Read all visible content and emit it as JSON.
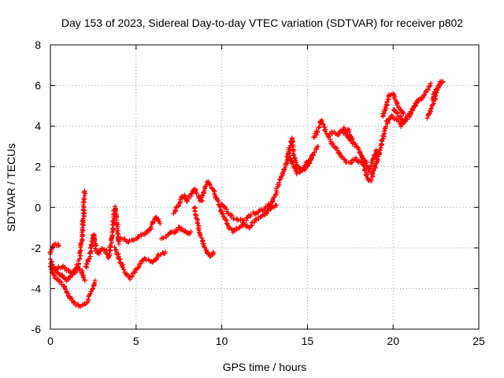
{
  "chart_data": {
    "type": "scatter",
    "title": "Day 153 of 2023, Sidereal Day-to-day VTEC variation (SDTVAR) for receiver p802",
    "xlabel": "GPS time / hours",
    "ylabel": "SDTVAR / TECUs",
    "xlim": [
      0,
      25
    ],
    "ylim": [
      -6,
      8
    ],
    "grid": true,
    "marker": "+",
    "color": "#ff0000",
    "x_ticks": [
      0,
      5,
      10,
      15,
      20,
      25
    ],
    "y_ticks": [
      -6,
      -4,
      -2,
      0,
      2,
      4,
      6,
      8
    ],
    "series": [
      {
        "name": "p802",
        "tracks": [
          {
            "x": [
              0.0,
              0.1,
              0.2,
              0.35,
              0.5
            ],
            "y": [
              -2.3,
              -2.0,
              -1.9,
              -1.8,
              -1.9
            ]
          },
          {
            "x": [
              0.0,
              0.15,
              0.3,
              0.5,
              0.8,
              1.0,
              1.2,
              1.5,
              1.8,
              2.0,
              2.2,
              2.4,
              2.6
            ],
            "y": [
              -2.8,
              -3.2,
              -3.5,
              -3.6,
              -3.9,
              -4.2,
              -4.5,
              -4.8,
              -4.9,
              -4.8,
              -4.6,
              -4.1,
              -3.6
            ]
          },
          {
            "x": [
              0.0,
              0.2,
              0.4,
              0.6,
              0.8,
              1.0,
              1.2,
              1.4,
              1.6,
              1.8,
              2.0
            ],
            "y": [
              -2.6,
              -3.0,
              -3.2,
              -3.3,
              -3.5,
              -3.6,
              -3.4,
              -3.2,
              -3.0,
              -3.1,
              -3.6
            ]
          },
          {
            "x": [
              0.4,
              0.7,
              1.0,
              1.3,
              1.5,
              1.7,
              1.8,
              1.9,
              1.95,
              2.0
            ],
            "y": [
              -3.0,
              -2.9,
              -3.1,
              -3.3,
              -3.0,
              -2.6,
              -2.0,
              -1.0,
              0.0,
              0.8
            ]
          },
          {
            "x": [
              2.1,
              2.3,
              2.4,
              2.5,
              2.6,
              2.7,
              2.8,
              3.0,
              3.2,
              3.4,
              3.6,
              3.7,
              3.75,
              3.8,
              3.9,
              4.0
            ],
            "y": [
              -3.0,
              -2.4,
              -1.8,
              -1.3,
              -1.6,
              -2.2,
              -2.3,
              -2.0,
              -2.1,
              -2.5,
              -1.5,
              -0.5,
              0.0,
              -0.2,
              -1.0,
              -1.8
            ]
          },
          {
            "x": [
              3.8,
              4.0,
              4.3,
              4.6,
              4.9,
              5.2,
              5.5,
              5.8,
              6.1,
              6.4,
              6.7
            ],
            "y": [
              -2.0,
              -2.5,
              -3.1,
              -3.5,
              -3.2,
              -2.8,
              -2.5,
              -2.7,
              -2.6,
              -2.3,
              -2.2
            ]
          },
          {
            "x": [
              4.0,
              4.3,
              4.6,
              4.9,
              5.2,
              5.5,
              5.8,
              6.0,
              6.2,
              6.4
            ],
            "y": [
              -1.5,
              -1.6,
              -1.7,
              -1.6,
              -1.4,
              -1.3,
              -1.1,
              -0.7,
              -0.5,
              -0.8
            ]
          },
          {
            "x": [
              6.5,
              6.8,
              7.0,
              7.2,
              7.5,
              7.7,
              8.0,
              8.2
            ],
            "y": [
              -1.5,
              -1.4,
              -1.2,
              -1.3,
              -1.0,
              -1.1,
              -1.3,
              -1.2
            ]
          },
          {
            "x": [
              7.2,
              7.4,
              7.6,
              7.8,
              8.0,
              8.2,
              8.4,
              8.6,
              8.8,
              9.0,
              9.2,
              9.4,
              9.6
            ],
            "y": [
              -0.3,
              0.0,
              0.4,
              0.6,
              0.3,
              0.6,
              0.9,
              0.6,
              0.3,
              0.9,
              1.3,
              1.0,
              0.6
            ]
          },
          {
            "x": [
              8.4,
              8.6,
              8.8,
              9.0,
              9.2,
              9.4,
              9.5
            ],
            "y": [
              0.0,
              -0.8,
              -1.5,
              -2.0,
              -2.3,
              -2.4,
              -2.2
            ]
          },
          {
            "x": [
              9.6,
              9.8,
              10.0,
              10.2,
              10.4,
              10.7,
              11.0,
              11.3,
              11.6,
              12.0,
              12.4,
              12.8,
              13.2
            ],
            "y": [
              0.5,
              0.3,
              -0.2,
              -0.6,
              -1.0,
              -1.2,
              -1.0,
              -0.8,
              -1.0,
              -0.6,
              -0.4,
              -0.1,
              0.1
            ]
          },
          {
            "x": [
              10.0,
              10.3,
              10.6,
              11.0,
              11.4,
              11.8,
              12.2,
              12.6,
              13.0
            ],
            "y": [
              0.2,
              -0.2,
              -0.5,
              -0.6,
              -0.6,
              -0.3,
              -0.2,
              0.0,
              0.3
            ]
          },
          {
            "x": [
              12.8,
              13.1,
              13.4,
              13.7,
              14.0,
              14.2,
              14.4,
              14.7,
              15.0,
              15.3,
              15.6
            ],
            "y": [
              0.0,
              0.6,
              1.3,
              2.0,
              2.5,
              2.0,
              1.7,
              1.8,
              2.2,
              2.5,
              3.0
            ]
          },
          {
            "x": [
              13.8,
              14.0,
              14.1,
              14.2,
              14.4,
              14.7,
              15.0,
              15.3
            ],
            "y": [
              2.4,
              3.0,
              3.4,
              2.6,
              2.0,
              1.8,
              2.0,
              2.6
            ]
          },
          {
            "x": [
              15.4,
              15.6,
              15.8,
              16.0,
              16.2,
              16.5,
              16.8,
              17.1,
              17.4,
              17.6
            ],
            "y": [
              3.4,
              3.8,
              4.3,
              3.9,
              3.5,
              3.7,
              3.6,
              3.9,
              3.8,
              3.3
            ]
          },
          {
            "x": [
              16.3,
              16.6,
              16.9,
              17.2,
              17.5,
              17.8,
              18.1
            ],
            "y": [
              3.3,
              3.0,
              2.6,
              2.3,
              2.2,
              2.4,
              2.2
            ]
          },
          {
            "x": [
              17.0,
              17.3,
              17.6,
              17.9,
              18.1,
              18.3,
              18.5,
              18.7,
              18.9,
              19.1,
              19.3,
              19.5,
              19.7
            ],
            "y": [
              3.8,
              3.5,
              3.2,
              3.0,
              2.7,
              2.0,
              1.4,
              1.3,
              1.9,
              2.4,
              3.0,
              3.8,
              4.2
            ]
          },
          {
            "x": [
              18.2,
              18.4,
              18.6,
              18.8,
              19.0,
              19.2
            ],
            "y": [
              2.6,
              2.2,
              1.8,
              2.2,
              2.8,
              2.6
            ]
          },
          {
            "x": [
              19.4,
              19.6,
              19.8,
              20.0,
              20.2,
              20.4,
              20.6
            ],
            "y": [
              4.5,
              5.0,
              5.5,
              5.6,
              5.2,
              4.8,
              4.6
            ]
          },
          {
            "x": [
              19.6,
              19.9,
              20.2,
              20.5,
              20.8,
              21.1,
              21.4,
              21.7,
              22.0,
              22.2
            ],
            "y": [
              4.2,
              4.5,
              4.3,
              4.0,
              4.4,
              4.8,
              5.2,
              5.4,
              5.8,
              6.1
            ]
          },
          {
            "x": [
              20.0,
              20.3,
              20.6,
              20.9,
              21.2,
              21.5
            ],
            "y": [
              4.8,
              4.6,
              4.2,
              4.5,
              4.9,
              5.3
            ]
          },
          {
            "x": [
              22.0,
              22.2,
              22.4,
              22.6,
              22.8
            ],
            "y": [
              4.4,
              4.8,
              5.3,
              5.8,
              6.2
            ]
          },
          {
            "x": [
              22.3,
              22.5,
              22.7,
              22.9
            ],
            "y": [
              5.4,
              5.8,
              6.0,
              6.2
            ]
          }
        ]
      }
    ]
  }
}
